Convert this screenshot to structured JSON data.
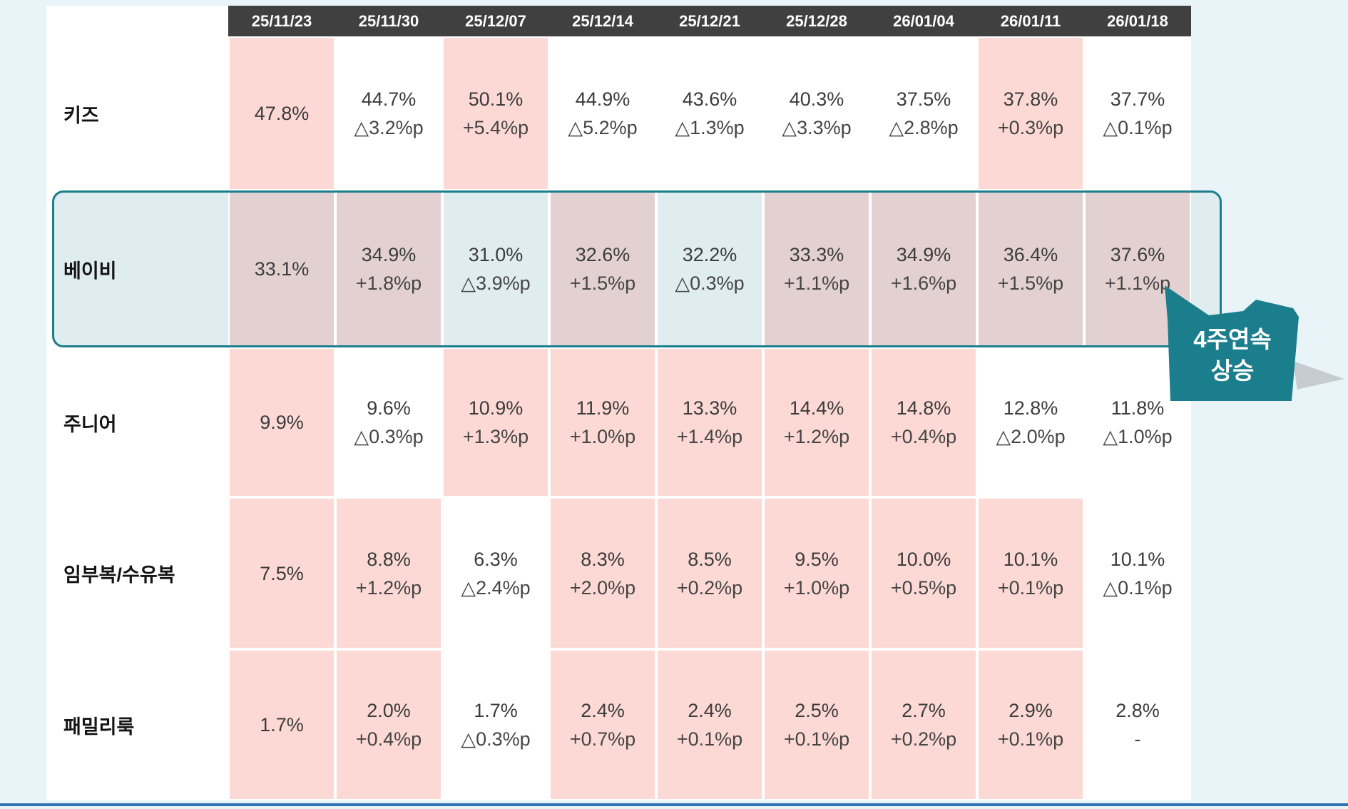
{
  "colors": {
    "page_bg": "#e9f4f9",
    "table_bg": "#ffffff",
    "header_bg": "#404040",
    "header_text": "#ffffff",
    "rise_highlight_pink": "#fcd9d4",
    "baby_row_bg": "#dfedf0",
    "baby_rise_mauve": "#e3d1d2",
    "teal_accent": "#1b7e8c",
    "callout_shadow": "#c7ccd0",
    "bottom_line_blue": "#2e74b5",
    "value_text": "#3c3c3c"
  },
  "table": {
    "columns": [
      "25/11/23",
      "25/11/30",
      "25/12/07",
      "25/12/14",
      "25/12/21",
      "25/12/28",
      "26/01/04",
      "26/01/11",
      "26/01/18"
    ],
    "rows": [
      {
        "label": "키즈",
        "cells": [
          {
            "value": "47.8%",
            "change": "",
            "hl": "pink"
          },
          {
            "value": "44.7%",
            "change": "△3.2%p",
            "hl": "none"
          },
          {
            "value": "50.1%",
            "change": "+5.4%p",
            "hl": "pink"
          },
          {
            "value": "44.9%",
            "change": "△5.2%p",
            "hl": "none"
          },
          {
            "value": "43.6%",
            "change": "△1.3%p",
            "hl": "none"
          },
          {
            "value": "40.3%",
            "change": "△3.3%p",
            "hl": "none"
          },
          {
            "value": "37.5%",
            "change": "△2.8%p",
            "hl": "none"
          },
          {
            "value": "37.8%",
            "change": "+0.3%p",
            "hl": "pink"
          },
          {
            "value": "37.7%",
            "change": "△0.1%p",
            "hl": "none"
          }
        ]
      },
      {
        "label": "베이비",
        "cells": [
          {
            "value": "33.1%",
            "change": "",
            "hl": "up"
          },
          {
            "value": "34.9%",
            "change": "+1.8%p",
            "hl": "up"
          },
          {
            "value": "31.0%",
            "change": "△3.9%p",
            "hl": "down"
          },
          {
            "value": "32.6%",
            "change": "+1.5%p",
            "hl": "up"
          },
          {
            "value": "32.2%",
            "change": "△0.3%p",
            "hl": "down"
          },
          {
            "value": "33.3%",
            "change": "+1.1%p",
            "hl": "up"
          },
          {
            "value": "34.9%",
            "change": "+1.6%p",
            "hl": "up"
          },
          {
            "value": "36.4%",
            "change": "+1.5%p",
            "hl": "up"
          },
          {
            "value": "37.6%",
            "change": "+1.1%p",
            "hl": "up"
          }
        ]
      },
      {
        "label": "주니어",
        "cells": [
          {
            "value": "9.9%",
            "change": "",
            "hl": "pink"
          },
          {
            "value": "9.6%",
            "change": "△0.3%p",
            "hl": "none"
          },
          {
            "value": "10.9%",
            "change": "+1.3%p",
            "hl": "pink"
          },
          {
            "value": "11.9%",
            "change": "+1.0%p",
            "hl": "pink"
          },
          {
            "value": "13.3%",
            "change": "+1.4%p",
            "hl": "pink"
          },
          {
            "value": "14.4%",
            "change": "+1.2%p",
            "hl": "pink"
          },
          {
            "value": "14.8%",
            "change": "+0.4%p",
            "hl": "pink"
          },
          {
            "value": "12.8%",
            "change": "△2.0%p",
            "hl": "none"
          },
          {
            "value": "11.8%",
            "change": "△1.0%p",
            "hl": "none"
          }
        ]
      },
      {
        "label": "임부복/수유복",
        "cells": [
          {
            "value": "7.5%",
            "change": "",
            "hl": "pink"
          },
          {
            "value": "8.8%",
            "change": "+1.2%p",
            "hl": "pink"
          },
          {
            "value": "6.3%",
            "change": "△2.4%p",
            "hl": "none"
          },
          {
            "value": "8.3%",
            "change": "+2.0%p",
            "hl": "pink"
          },
          {
            "value": "8.5%",
            "change": "+0.2%p",
            "hl": "pink"
          },
          {
            "value": "9.5%",
            "change": "+1.0%p",
            "hl": "pink"
          },
          {
            "value": "10.0%",
            "change": "+0.5%p",
            "hl": "pink"
          },
          {
            "value": "10.1%",
            "change": "+0.1%p",
            "hl": "pink"
          },
          {
            "value": "10.1%",
            "change": "△0.1%p",
            "hl": "none"
          }
        ]
      },
      {
        "label": "패밀리룩",
        "cells": [
          {
            "value": "1.7%",
            "change": "",
            "hl": "pink"
          },
          {
            "value": "2.0%",
            "change": "+0.4%p",
            "hl": "pink"
          },
          {
            "value": "1.7%",
            "change": "△0.3%p",
            "hl": "none"
          },
          {
            "value": "2.4%",
            "change": "+0.7%p",
            "hl": "pink"
          },
          {
            "value": "2.4%",
            "change": "+0.1%p",
            "hl": "pink"
          },
          {
            "value": "2.5%",
            "change": "+0.1%p",
            "hl": "pink"
          },
          {
            "value": "2.7%",
            "change": "+0.2%p",
            "hl": "pink"
          },
          {
            "value": "2.9%",
            "change": "+0.1%p",
            "hl": "pink"
          },
          {
            "value": "2.8%",
            "change": "-",
            "hl": "none"
          }
        ]
      }
    ]
  },
  "callout": {
    "line1": "4주연속",
    "line2": "상승"
  },
  "chart_data": {
    "type": "table",
    "title": "",
    "columns": [
      "25/11/23",
      "25/11/30",
      "25/12/07",
      "25/12/14",
      "25/12/21",
      "25/12/28",
      "26/01/04",
      "26/01/11",
      "26/01/18"
    ],
    "rows": [
      {
        "label": "키즈",
        "values": [
          47.8,
          44.7,
          50.1,
          44.9,
          43.6,
          40.3,
          37.5,
          37.8,
          37.7
        ],
        "changes_pp": [
          null,
          -3.2,
          5.4,
          -5.2,
          -1.3,
          -3.3,
          -2.8,
          0.3,
          -0.1
        ]
      },
      {
        "label": "베이비",
        "values": [
          33.1,
          34.9,
          31.0,
          32.6,
          32.2,
          33.3,
          34.9,
          36.4,
          37.6
        ],
        "changes_pp": [
          null,
          1.8,
          -3.9,
          1.5,
          -0.3,
          1.1,
          1.6,
          1.5,
          1.1
        ]
      },
      {
        "label": "주니어",
        "values": [
          9.9,
          9.6,
          10.9,
          11.9,
          13.3,
          14.4,
          14.8,
          12.8,
          11.8
        ],
        "changes_pp": [
          null,
          -0.3,
          1.3,
          1.0,
          1.4,
          1.2,
          0.4,
          -2.0,
          -1.0
        ]
      },
      {
        "label": "임부복/수유복",
        "values": [
          7.5,
          8.8,
          6.3,
          8.3,
          8.5,
          9.5,
          10.0,
          10.1,
          10.1
        ],
        "changes_pp": [
          null,
          1.2,
          -2.4,
          2.0,
          0.2,
          1.0,
          0.5,
          0.1,
          -0.1
        ]
      },
      {
        "label": "패밀리룩",
        "values": [
          1.7,
          2.0,
          1.7,
          2.4,
          2.4,
          2.5,
          2.7,
          2.9,
          2.8
        ],
        "changes_pp": [
          null,
          0.4,
          -0.3,
          0.7,
          0.1,
          0.1,
          0.2,
          0.1,
          null
        ]
      }
    ],
    "notes": {
      "decrease_symbol": "△ prefix marks week-over-week decrease",
      "highlight": "pink cells mark week-over-week increases; 베이비 row is outlined in teal with callout",
      "callout_text": "4주연속 상승",
      "callout_points_to": "베이비 26/01/18 cell (37.6% +1.1%p)"
    }
  }
}
